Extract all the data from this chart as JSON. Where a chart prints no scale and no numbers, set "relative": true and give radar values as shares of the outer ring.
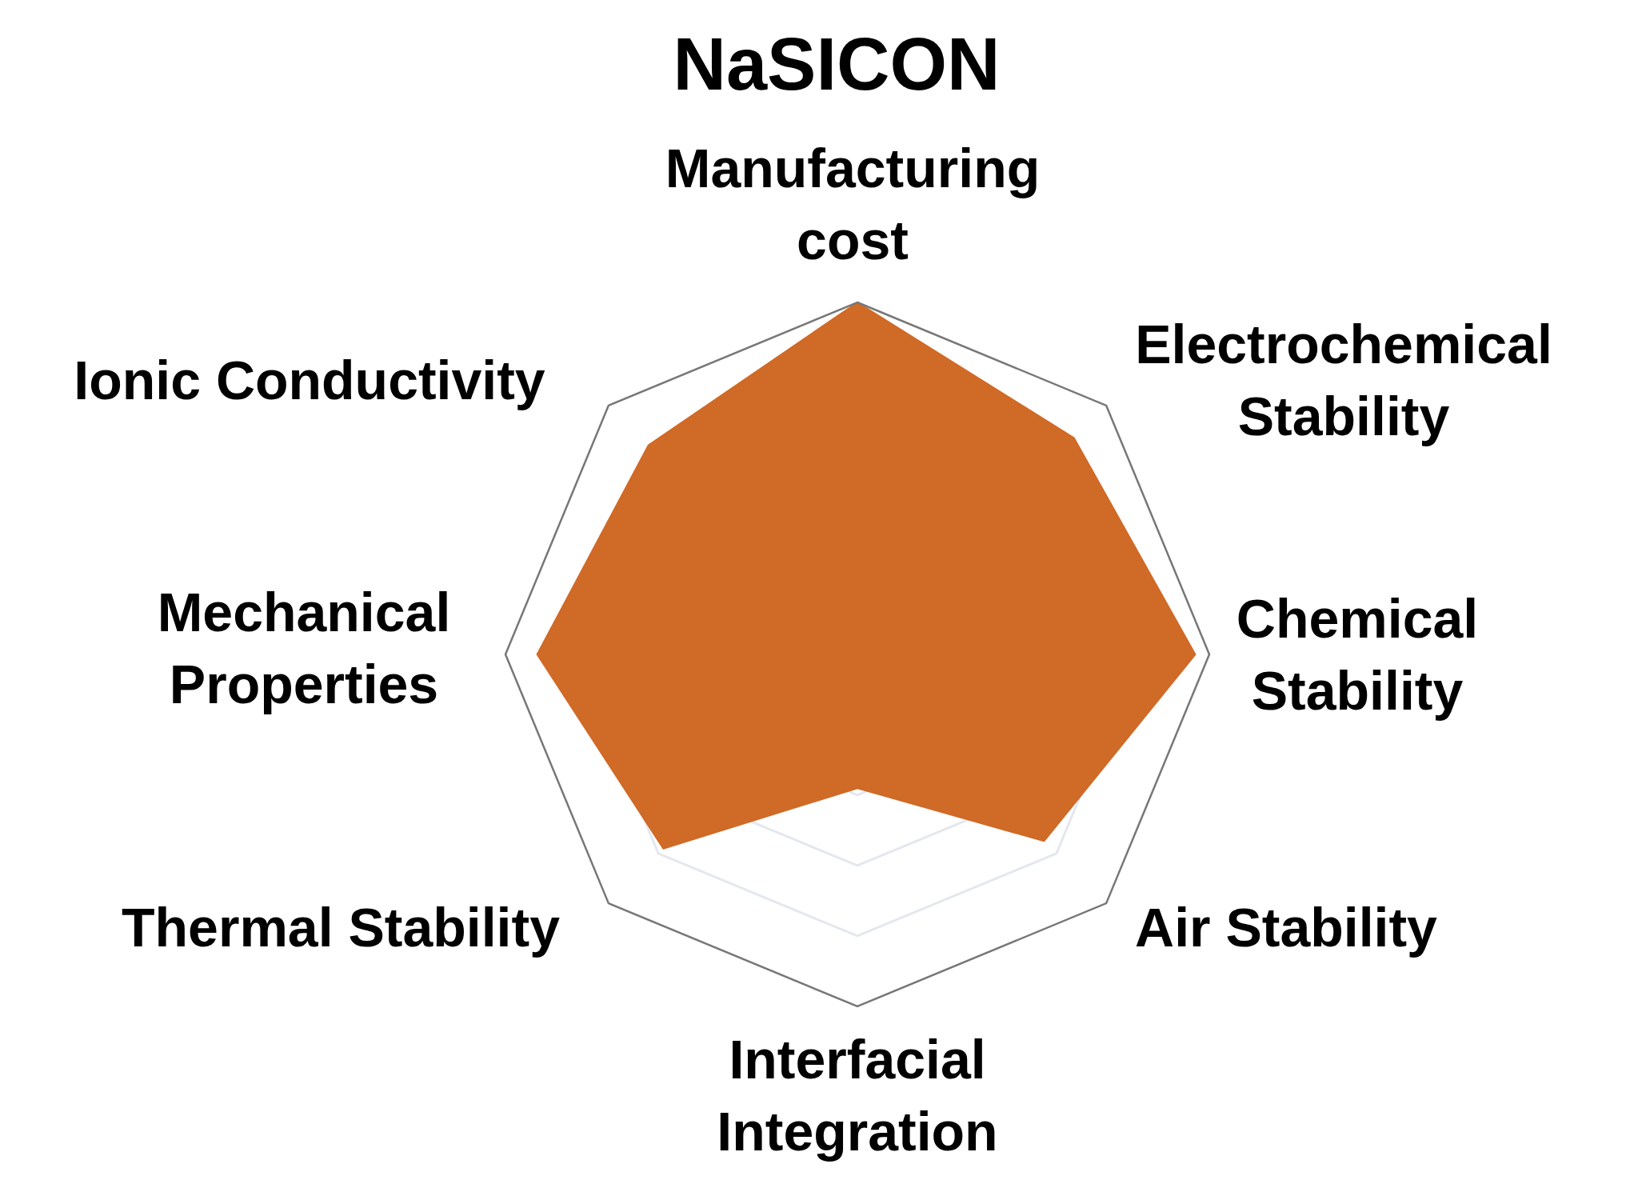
{
  "chart_data": {
    "type": "radar",
    "title": "NaSICON",
    "relative": true,
    "grid": true,
    "categories": [
      "Manufacturing cost",
      "Electrochemical Stability",
      "Chemical Stability",
      "Air Stability",
      "Interfacial Integration",
      "Thermal Stability",
      "Mechanical Properties",
      "Ionic Conductivity"
    ],
    "series": [
      {
        "color": "#d06a27",
        "values": [
          1.0,
          0.87,
          0.96,
          0.75,
          0.38,
          0.78,
          0.91,
          0.84
        ]
      }
    ]
  }
}
